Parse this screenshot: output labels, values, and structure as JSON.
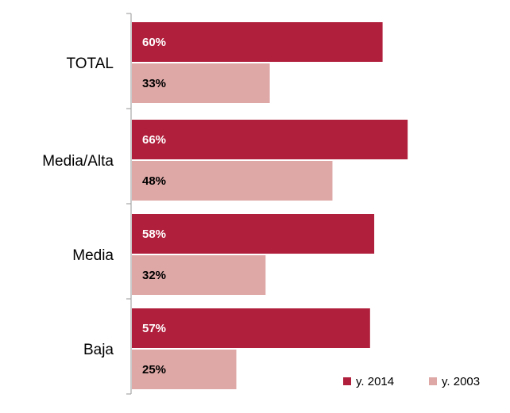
{
  "chart_data": {
    "type": "bar",
    "orientation": "horizontal",
    "title": "",
    "xlabel": "",
    "ylabel": "",
    "categories": [
      "TOTAL",
      "Media/Alta",
      "Media",
      "Baja"
    ],
    "series": [
      {
        "name": "y. 2014",
        "values": [
          60,
          66,
          58,
          57
        ],
        "labels": [
          "60%",
          "66%",
          "58%",
          "57%"
        ],
        "color": "#b01f3c",
        "label_color": "#ffffff"
      },
      {
        "name": "y. 2003",
        "values": [
          33,
          48,
          32,
          25
        ],
        "labels": [
          "33%",
          "48%",
          "32%",
          "25%"
        ],
        "color": "#dea8a6",
        "label_color": "#000000"
      }
    ],
    "xlim": [
      0,
      100
    ],
    "grid": false,
    "legend_position": "bottom-right",
    "axis_color": "#a6a6a6"
  }
}
